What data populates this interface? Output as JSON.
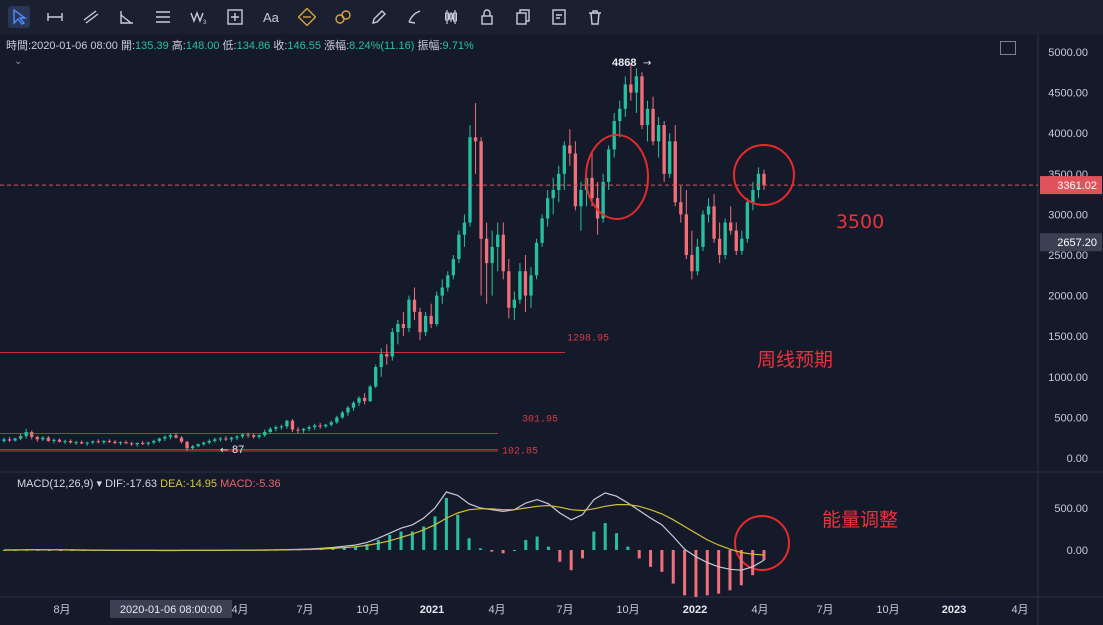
{
  "toolbar": {
    "tools": [
      "cursor-icon",
      "horizontal-line-icon",
      "trend-lines-icon",
      "angle-icon",
      "channel-icon",
      "wave-icon",
      "crosshair-box-icon",
      "text-icon",
      "ruler-icon",
      "link-icon",
      "pencil-icon",
      "brush-icon",
      "candles-icon",
      "lock-icon",
      "copy-icon",
      "settings-icon",
      "trash-icon"
    ]
  },
  "ohlc": {
    "time_label": "時間:",
    "time": "2020-01-06 08:00",
    "open_label": "開:",
    "open": "135.39",
    "high_label": "高:",
    "high": "148.00",
    "low_label": "低:",
    "low": "134.86",
    "close_label": "收:",
    "close": "146.55",
    "change_label": "漲幅:",
    "change": "8.24%(11.16)",
    "amp_label": "振幅:",
    "amp": "9.71%"
  },
  "macd": {
    "name": "MACD(12,26,9)",
    "dif_label": "DIF:",
    "dif": "-17.63",
    "dea_label": "DEA:",
    "dea": "-14.95",
    "macd_label": "MACD:",
    "macd": "-5.36"
  },
  "chart_data": {
    "type": "candlestick",
    "price_axis": {
      "ticks": [
        "5000.00",
        "4500.00",
        "4000.00",
        "3500.00",
        "3000.00",
        "2500.00",
        "2000.00",
        "1500.00",
        "1000.00",
        "500.00",
        "0.00"
      ],
      "ylim": [
        0,
        5000
      ]
    },
    "macd_axis": {
      "ticks": [
        "500.00",
        "0.00"
      ]
    },
    "time_axis": {
      "ticks": [
        "8月",
        "2020-01-06 08:00:00",
        "4月",
        "7月",
        "10月",
        "2021",
        "4月",
        "7月",
        "10月",
        "2022",
        "4月",
        "7月",
        "10月",
        "2023",
        "4月"
      ]
    },
    "current_price": "3361.02",
    "second_price_tag": "2657.20",
    "high_annotation": "4868",
    "low_annotation": "87",
    "levels": [
      {
        "value": 1298.95,
        "label": "1298.95"
      },
      {
        "value": 301.95,
        "label": "301.95"
      },
      {
        "value": 102.85,
        "label": "102.85"
      }
    ],
    "annotations": [
      "3500",
      "周线预期",
      "能量调整"
    ],
    "candles": [
      [
        210,
        250,
        190,
        230
      ],
      [
        230,
        260,
        200,
        215
      ],
      [
        215,
        250,
        200,
        240
      ],
      [
        240,
        300,
        220,
        270
      ],
      [
        270,
        360,
        240,
        320
      ],
      [
        320,
        340,
        230,
        260
      ],
      [
        260,
        275,
        200,
        230
      ],
      [
        230,
        270,
        210,
        250
      ],
      [
        250,
        270,
        200,
        210
      ],
      [
        210,
        240,
        180,
        225
      ],
      [
        225,
        240,
        190,
        200
      ],
      [
        200,
        225,
        170,
        210
      ],
      [
        210,
        230,
        180,
        190
      ],
      [
        190,
        210,
        160,
        195
      ],
      [
        195,
        215,
        170,
        180
      ],
      [
        180,
        200,
        150,
        190
      ],
      [
        190,
        215,
        170,
        205
      ],
      [
        205,
        230,
        180,
        195
      ],
      [
        195,
        220,
        170,
        210
      ],
      [
        210,
        230,
        185,
        200
      ],
      [
        200,
        220,
        170,
        185
      ],
      [
        185,
        205,
        160,
        195
      ],
      [
        195,
        215,
        175,
        180
      ],
      [
        180,
        200,
        150,
        170
      ],
      [
        170,
        190,
        140,
        185
      ],
      [
        185,
        210,
        160,
        175
      ],
      [
        175,
        200,
        150,
        190
      ],
      [
        190,
        225,
        170,
        210
      ],
      [
        210,
        250,
        190,
        240
      ],
      [
        240,
        280,
        210,
        260
      ],
      [
        260,
        300,
        230,
        280
      ],
      [
        280,
        310,
        240,
        250
      ],
      [
        250,
        270,
        180,
        200
      ],
      [
        200,
        210,
        87,
        120
      ],
      [
        120,
        160,
        100,
        145
      ],
      [
        145,
        180,
        130,
        170
      ],
      [
        170,
        200,
        150,
        190
      ],
      [
        190,
        230,
        170,
        210
      ],
      [
        210,
        250,
        190,
        230
      ],
      [
        230,
        260,
        200,
        240
      ],
      [
        240,
        270,
        210,
        230
      ],
      [
        230,
        260,
        200,
        250
      ],
      [
        250,
        280,
        220,
        265
      ],
      [
        265,
        300,
        240,
        290
      ],
      [
        290,
        310,
        250,
        280
      ],
      [
        280,
        300,
        240,
        260
      ],
      [
        260,
        290,
        240,
        280
      ],
      [
        280,
        350,
        260,
        320
      ],
      [
        320,
        380,
        300,
        360
      ],
      [
        360,
        400,
        330,
        380
      ],
      [
        380,
        410,
        350,
        390
      ],
      [
        390,
        470,
        360,
        460
      ],
      [
        460,
        480,
        320,
        350
      ],
      [
        350,
        380,
        300,
        340
      ],
      [
        340,
        370,
        310,
        360
      ],
      [
        360,
        400,
        330,
        380
      ],
      [
        380,
        420,
        350,
        400
      ],
      [
        400,
        430,
        360,
        390
      ],
      [
        390,
        420,
        370,
        410
      ],
      [
        410,
        460,
        390,
        440
      ],
      [
        440,
        520,
        420,
        500
      ],
      [
        500,
        580,
        480,
        560
      ],
      [
        560,
        640,
        520,
        620
      ],
      [
        620,
        700,
        580,
        680
      ],
      [
        680,
        760,
        640,
        740
      ],
      [
        740,
        800,
        660,
        700
      ],
      [
        700,
        900,
        690,
        880
      ],
      [
        880,
        1150,
        860,
        1120
      ],
      [
        1120,
        1350,
        1000,
        1280
      ],
      [
        1280,
        1400,
        1150,
        1250
      ],
      [
        1250,
        1600,
        1200,
        1550
      ],
      [
        1550,
        1700,
        1400,
        1650
      ],
      [
        1650,
        1800,
        1500,
        1600
      ],
      [
        1600,
        2000,
        1550,
        1950
      ],
      [
        1950,
        2100,
        1700,
        1800
      ],
      [
        1800,
        1850,
        1450,
        1550
      ],
      [
        1550,
        1800,
        1500,
        1750
      ],
      [
        1750,
        1900,
        1600,
        1650
      ],
      [
        1650,
        2050,
        1620,
        2000
      ],
      [
        2000,
        2200,
        1900,
        2100
      ],
      [
        2100,
        2300,
        2050,
        2250
      ],
      [
        2250,
        2500,
        2200,
        2450
      ],
      [
        2450,
        2800,
        2400,
        2750
      ],
      [
        2750,
        3000,
        2600,
        2900
      ],
      [
        2900,
        4100,
        2850,
        3950
      ],
      [
        3950,
        4370,
        3500,
        3900
      ],
      [
        3900,
        3950,
        2000,
        2700
      ],
      [
        2700,
        2900,
        1900,
        2400
      ],
      [
        2400,
        2800,
        2000,
        2600
      ],
      [
        2600,
        2900,
        2300,
        2750
      ],
      [
        2750,
        2900,
        2200,
        2300
      ],
      [
        2300,
        2450,
        1720,
        1850
      ],
      [
        1850,
        2050,
        1700,
        1950
      ],
      [
        1950,
        2400,
        1900,
        2300
      ],
      [
        2300,
        2500,
        1800,
        2000
      ],
      [
        2000,
        2350,
        1850,
        2250
      ],
      [
        2250,
        2700,
        2200,
        2650
      ],
      [
        2650,
        3000,
        2600,
        2950
      ],
      [
        2950,
        3300,
        2850,
        3200
      ],
      [
        3200,
        3450,
        3000,
        3300
      ],
      [
        3300,
        3600,
        3150,
        3500
      ],
      [
        3500,
        3900,
        3300,
        3850
      ],
      [
        3850,
        4050,
        3600,
        3750
      ],
      [
        3750,
        3900,
        3050,
        3100
      ],
      [
        3100,
        3400,
        2800,
        3300
      ],
      [
        3300,
        3550,
        3100,
        3450
      ],
      [
        3450,
        3750,
        3100,
        3200
      ],
      [
        3200,
        3400,
        2750,
        2950
      ],
      [
        2950,
        3500,
        2900,
        3400
      ],
      [
        3400,
        3850,
        3300,
        3800
      ],
      [
        3800,
        4250,
        3700,
        4150
      ],
      [
        4150,
        4400,
        3950,
        4300
      ],
      [
        4300,
        4700,
        4200,
        4600
      ],
      [
        4600,
        4868,
        4400,
        4500
      ],
      [
        4500,
        4800,
        4250,
        4700
      ],
      [
        4700,
        4750,
        4050,
        4100
      ],
      [
        4100,
        4400,
        3900,
        4300
      ],
      [
        4300,
        4450,
        3850,
        3900
      ],
      [
        3900,
        4200,
        3700,
        4100
      ],
      [
        4100,
        4150,
        3400,
        3500
      ],
      [
        3500,
        4000,
        3450,
        3900
      ],
      [
        3900,
        4100,
        3100,
        3150
      ],
      [
        3150,
        3350,
        2900,
        3000
      ],
      [
        3000,
        3300,
        2450,
        2500
      ],
      [
        2500,
        2800,
        2200,
        2300
      ],
      [
        2300,
        2700,
        2250,
        2600
      ],
      [
        2600,
        3050,
        2550,
        3000
      ],
      [
        3000,
        3200,
        2900,
        3100
      ],
      [
        3100,
        3250,
        2650,
        2700
      ],
      [
        2700,
        2900,
        2400,
        2500
      ],
      [
        2500,
        2950,
        2450,
        2900
      ],
      [
        2900,
        3100,
        2750,
        2800
      ],
      [
        2800,
        2900,
        2500,
        2550
      ],
      [
        2550,
        2800,
        2500,
        2700
      ],
      [
        2700,
        3200,
        2650,
        3150
      ],
      [
        3150,
        3400,
        3050,
        3300
      ],
      [
        3300,
        3580,
        3200,
        3500
      ],
      [
        3500,
        3550,
        3300,
        3361
      ]
    ],
    "macd_series": {
      "dif": [
        0,
        0,
        2,
        3,
        2,
        1,
        0,
        -1,
        -2,
        -3,
        -3,
        -4,
        -5,
        -5,
        -6,
        -6,
        -5,
        -4,
        -3,
        -3,
        -2,
        -2,
        -1,
        0,
        2,
        5,
        8,
        12,
        20,
        30,
        45,
        60,
        90,
        140,
        200,
        260,
        300,
        380,
        500,
        690,
        650,
        550,
        500,
        480,
        460,
        480,
        560,
        600,
        550,
        440,
        360,
        420,
        600,
        680,
        640,
        560,
        470,
        380,
        300,
        160,
        10,
        -80,
        -150,
        -200,
        -230,
        -240,
        -200,
        -120
      ],
      "dea": [
        0,
        0,
        1,
        2,
        2,
        2,
        1,
        0,
        -1,
        -2,
        -2,
        -3,
        -4,
        -4,
        -5,
        -5,
        -5,
        -4,
        -3,
        -3,
        -2,
        -2,
        -1,
        -1,
        0,
        2,
        4,
        7,
        12,
        19,
        28,
        38,
        55,
        80,
        110,
        150,
        190,
        240,
        300,
        380,
        440,
        480,
        490,
        490,
        480,
        480,
        500,
        520,
        530,
        510,
        480,
        470,
        490,
        520,
        540,
        540,
        520,
        480,
        430,
        360,
        280,
        200,
        120,
        60,
        10,
        -30,
        -50,
        -60
      ]
    }
  }
}
